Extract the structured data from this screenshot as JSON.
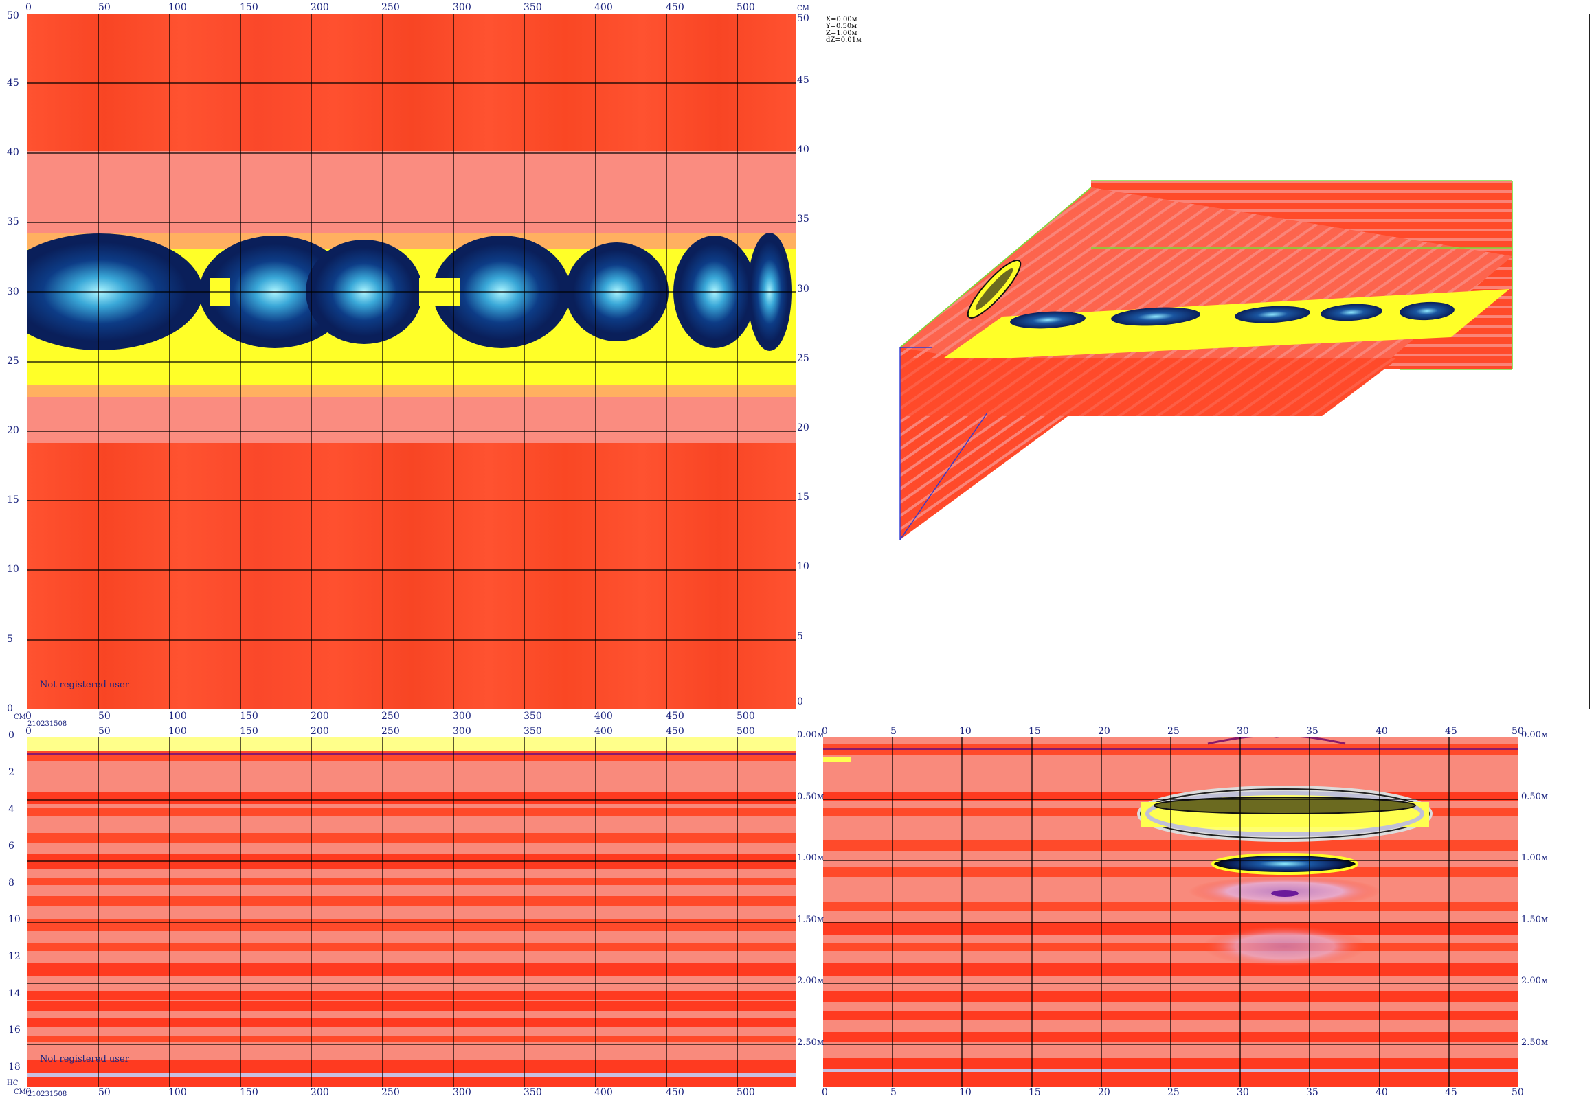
{
  "top_left": {
    "x_ticks": [
      "0",
      "50",
      "100",
      "150",
      "200",
      "250",
      "300",
      "350",
      "400",
      "450",
      "500"
    ],
    "y_left_ticks": [
      "50",
      "45",
      "40",
      "35",
      "30",
      "25",
      "20",
      "15",
      "10",
      "5",
      "0"
    ],
    "y_right_ticks": [
      "50",
      "45",
      "40",
      "35",
      "30",
      "25",
      "20",
      "15",
      "10",
      "5",
      "0"
    ],
    "corner_unit_left": "СМ",
    "corner_unit_right": "СМ",
    "bottom_label": "210231508",
    "watermark": "Not registered user"
  },
  "bottom_left": {
    "x_ticks": [
      "0",
      "50",
      "100",
      "150",
      "200",
      "250",
      "300",
      "350",
      "400",
      "450",
      "500"
    ],
    "y_ticks": [
      "0",
      "2",
      "4",
      "6",
      "8",
      "10",
      "12",
      "14",
      "16",
      "18"
    ],
    "corner_unit_top": "НС",
    "corner_unit_bottom": "СМ",
    "bottom_label": "210231508",
    "watermark": "Not registered user"
  },
  "bottom_right": {
    "x_ticks": [
      "0",
      "5",
      "10",
      "15",
      "20",
      "25",
      "30",
      "35",
      "40",
      "45",
      "50"
    ],
    "y_left_ticks": [
      "0.00м",
      "0.50м",
      "1.00м",
      "1.50м",
      "2.00м",
      "2.50м"
    ],
    "y_right_ticks": [
      "0.00м",
      "0.50м",
      "1.00м",
      "1.50м",
      "2.00м",
      "2.50м"
    ]
  },
  "three_d": {
    "readout": [
      "X=0.00м",
      "Y=0.50м",
      "Z=1.00м",
      "dZ=0.01м"
    ]
  },
  "colors": {
    "background_red": "#ff4a2a",
    "light_band": "#fa8a80",
    "yellow": "#ffff28",
    "dark_blue": "#0b2a6a",
    "cyan": "#8ff0ff",
    "grid": "#000000"
  }
}
